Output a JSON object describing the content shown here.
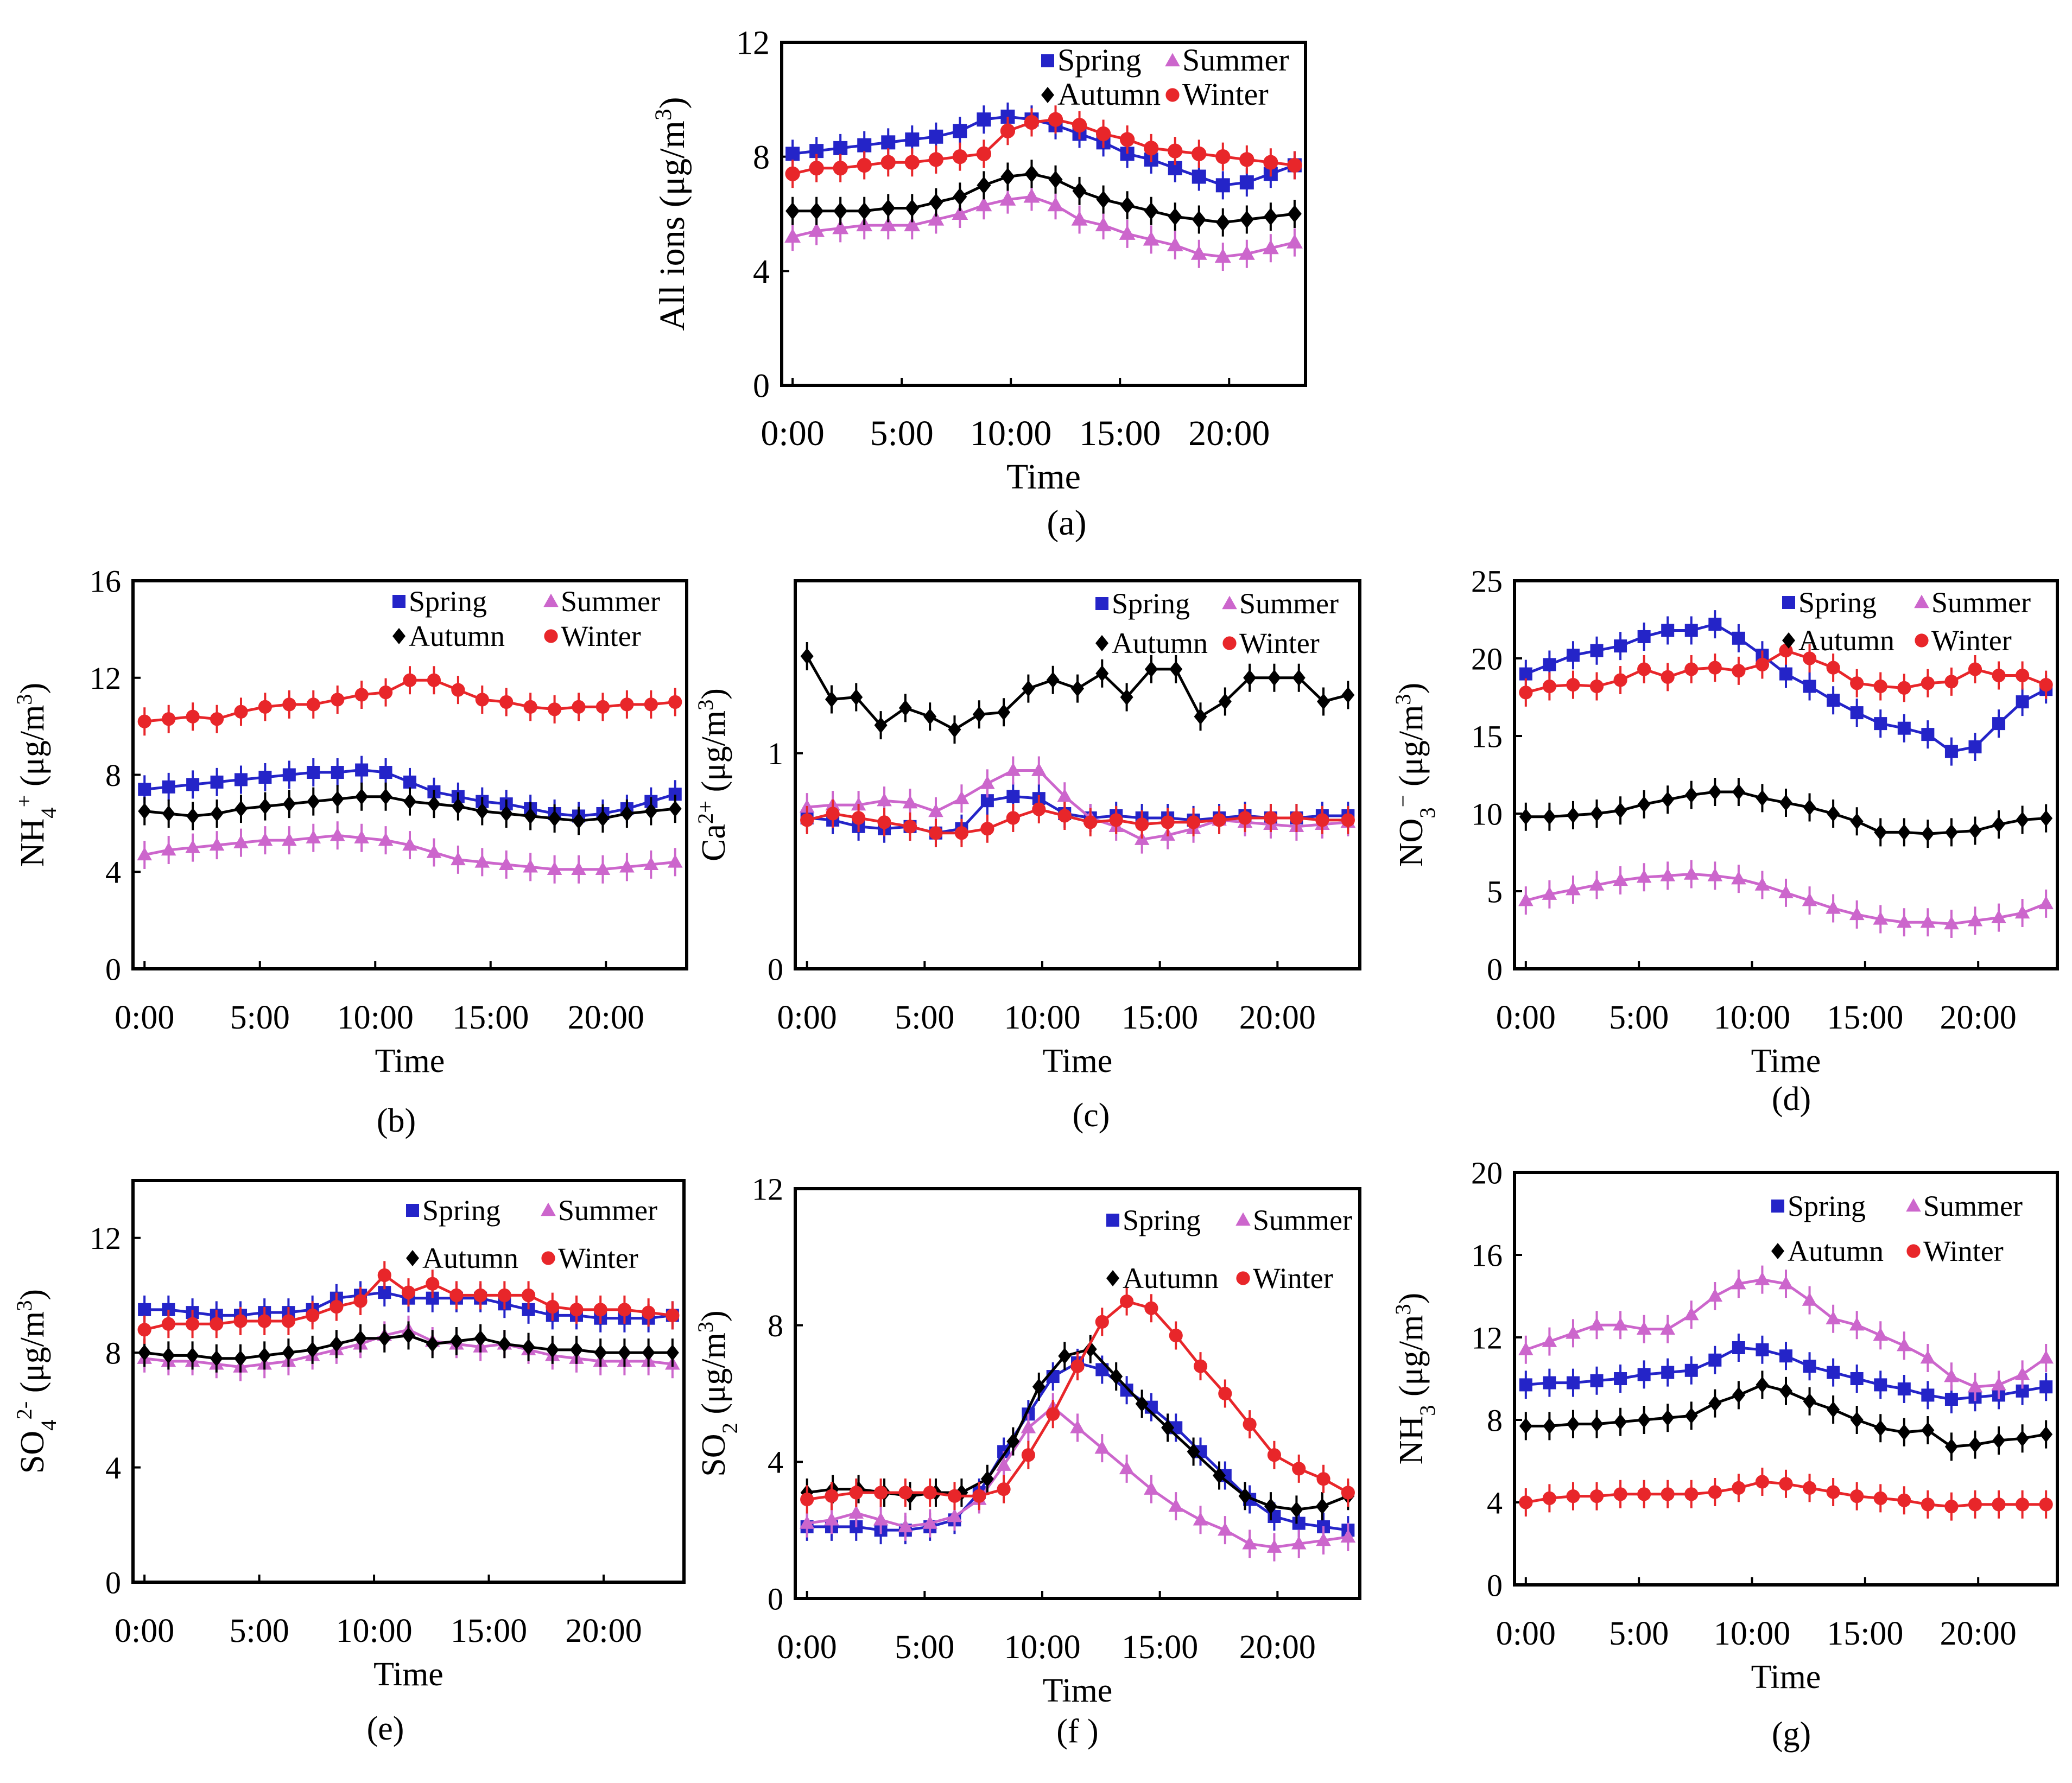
{
  "figure": {
    "x_title": "Time"
  },
  "colors": {
    "spring": "#2424c8",
    "summer": "#cc66cc",
    "autumn": "#000000",
    "winter": "#e8262a",
    "axis": "#000000",
    "background": "#ffffff"
  },
  "chart_data": [
    {
      "id": "a",
      "type": "line",
      "caption": "(a)",
      "ylabel_main": "All ions",
      "ylabel_unit": "(μg/m",
      "ylabel_sup": "3",
      "ylabel_end": ")",
      "ylim": [
        0,
        12
      ],
      "yticks": [
        0,
        4,
        8,
        12
      ],
      "ytick_labels": [
        "0",
        "4",
        "8",
        "12"
      ],
      "xlim": [
        -0.5,
        23.5
      ],
      "xticks": [
        0,
        5,
        10,
        15,
        20
      ],
      "xtick_labels": [
        "0:00",
        "5:00",
        "10:00",
        "15:00",
        "20:00"
      ],
      "x_title": "Time",
      "legend_order": [
        "Spring",
        "Summer",
        "Autumn",
        "Winter"
      ],
      "series": [
        {
          "name": "Spring",
          "values": [
            8.1,
            8.2,
            8.3,
            8.4,
            8.5,
            8.6,
            8.7,
            8.9,
            9.3,
            9.4,
            9.3,
            9.1,
            8.8,
            8.5,
            8.1,
            7.9,
            7.6,
            7.3,
            7.0,
            7.1,
            7.4,
            7.7
          ]
        },
        {
          "name": "Summer",
          "values": [
            5.2,
            5.4,
            5.5,
            5.6,
            5.6,
            5.6,
            5.8,
            6.0,
            6.3,
            6.5,
            6.6,
            6.3,
            5.8,
            5.6,
            5.3,
            5.1,
            4.9,
            4.6,
            4.5,
            4.6,
            4.8,
            5.0
          ]
        },
        {
          "name": "Autumn",
          "values": [
            6.1,
            6.1,
            6.1,
            6.1,
            6.2,
            6.2,
            6.4,
            6.6,
            7.0,
            7.3,
            7.4,
            7.2,
            6.8,
            6.5,
            6.3,
            6.1,
            5.9,
            5.8,
            5.7,
            5.8,
            5.9,
            6.0
          ]
        },
        {
          "name": "Winter",
          "values": [
            7.4,
            7.6,
            7.6,
            7.7,
            7.8,
            7.8,
            7.9,
            8.0,
            8.1,
            8.9,
            9.2,
            9.3,
            9.1,
            8.8,
            8.6,
            8.3,
            8.2,
            8.1,
            8.0,
            7.9,
            7.8,
            7.7
          ]
        }
      ]
    },
    {
      "id": "b",
      "type": "line",
      "caption": "(b)",
      "ylabel_main": "NH",
      "ylabel_sub": "4",
      "ylabel_sup": "+",
      "ylabel_unit": "(μg/m",
      "ylabel_unit_sup": "3",
      "ylabel_end": ")",
      "ylim": [
        0,
        16
      ],
      "yticks": [
        0,
        4,
        8,
        12,
        16
      ],
      "ytick_labels": [
        "0",
        "4",
        "8",
        "12",
        "16"
      ],
      "xlim": [
        -0.5,
        23.5
      ],
      "xticks": [
        0,
        5,
        10,
        15,
        20
      ],
      "xtick_labels": [
        "0:00",
        "5:00",
        "10:00",
        "15:00",
        "20:00"
      ],
      "x_title": "Time",
      "legend_order": [
        "Spring",
        "Summer",
        "Autumn",
        "Winter"
      ],
      "series": [
        {
          "name": "Spring",
          "values": [
            7.4,
            7.5,
            7.6,
            7.7,
            7.8,
            7.9,
            8.0,
            8.1,
            8.1,
            8.2,
            8.1,
            7.7,
            7.3,
            7.1,
            6.9,
            6.8,
            6.6,
            6.4,
            6.3,
            6.4,
            6.6,
            6.9,
            7.2
          ]
        },
        {
          "name": "Summer",
          "values": [
            4.7,
            4.9,
            5.0,
            5.1,
            5.2,
            5.3,
            5.3,
            5.4,
            5.5,
            5.4,
            5.3,
            5.1,
            4.8,
            4.5,
            4.4,
            4.3,
            4.2,
            4.1,
            4.1,
            4.1,
            4.2,
            4.3,
            4.4
          ]
        },
        {
          "name": "Autumn",
          "values": [
            6.5,
            6.4,
            6.3,
            6.4,
            6.6,
            6.7,
            6.8,
            6.9,
            7.0,
            7.1,
            7.1,
            6.9,
            6.8,
            6.7,
            6.5,
            6.4,
            6.3,
            6.2,
            6.1,
            6.2,
            6.4,
            6.5,
            6.6
          ]
        },
        {
          "name": "Winter",
          "values": [
            10.2,
            10.3,
            10.4,
            10.3,
            10.6,
            10.8,
            10.9,
            10.9,
            11.1,
            11.3,
            11.4,
            11.9,
            11.9,
            11.5,
            11.1,
            11.0,
            10.8,
            10.7,
            10.8,
            10.8,
            10.9,
            10.9,
            11.0
          ]
        }
      ]
    },
    {
      "id": "c",
      "type": "line",
      "caption": "(c)",
      "ylabel_main": "Ca",
      "ylabel_sup": "2+",
      "ylabel_unit": "(μg/m",
      "ylabel_unit_sup": "3",
      "ylabel_end": ")",
      "ylim": [
        0,
        1.8
      ],
      "yticks": [
        0,
        1
      ],
      "ytick_labels": [
        "0",
        "1"
      ],
      "xlim": [
        -0.5,
        23.5
      ],
      "xticks": [
        0,
        5,
        10,
        15,
        20
      ],
      "xtick_labels": [
        "0:00",
        "5:00",
        "10:00",
        "15:00",
        "20:00"
      ],
      "x_title": "Time",
      "legend_order": [
        "Spring",
        "Summer",
        "Autumn",
        "Winter"
      ],
      "series": [
        {
          "name": "Spring",
          "values": [
            0.7,
            0.69,
            0.66,
            0.65,
            0.66,
            0.63,
            0.65,
            0.78,
            0.8,
            0.79,
            0.72,
            0.7,
            0.71,
            0.7,
            0.7,
            0.69,
            0.7,
            0.71,
            0.7,
            0.7,
            0.71,
            0.71
          ]
        },
        {
          "name": "Summer",
          "values": [
            0.75,
            0.76,
            0.76,
            0.78,
            0.77,
            0.73,
            0.79,
            0.86,
            0.92,
            0.92,
            0.8,
            0.7,
            0.66,
            0.6,
            0.62,
            0.65,
            0.69,
            0.68,
            0.67,
            0.66,
            0.67,
            0.68
          ]
        },
        {
          "name": "Autumn",
          "values": [
            1.45,
            1.25,
            1.26,
            1.13,
            1.21,
            1.17,
            1.11,
            1.18,
            1.19,
            1.3,
            1.34,
            1.3,
            1.37,
            1.26,
            1.39,
            1.39,
            1.17,
            1.24,
            1.35,
            1.35,
            1.35,
            1.24,
            1.27
          ]
        },
        {
          "name": "Winter",
          "values": [
            0.69,
            0.72,
            0.7,
            0.68,
            0.66,
            0.63,
            0.63,
            0.65,
            0.7,
            0.74,
            0.71,
            0.68,
            0.69,
            0.67,
            0.68,
            0.68,
            0.69,
            0.7,
            0.7,
            0.7,
            0.69,
            0.69
          ]
        }
      ]
    },
    {
      "id": "d",
      "type": "line",
      "caption": "(d)",
      "ylabel_main": "NO",
      "ylabel_sub": "3",
      "ylabel_sup": "−",
      "ylabel_unit": "(μg/m",
      "ylabel_unit_sup": "3",
      "ylabel_end": ")",
      "ylim": [
        0,
        25
      ],
      "yticks": [
        0,
        5,
        10,
        15,
        20,
        25
      ],
      "ytick_labels": [
        "0",
        "5",
        "10",
        "15",
        "20",
        "25"
      ],
      "xlim": [
        -0.5,
        23.5
      ],
      "xticks": [
        0,
        5,
        10,
        15,
        20
      ],
      "xtick_labels": [
        "0:00",
        "5:00",
        "10:00",
        "15:00",
        "20:00"
      ],
      "x_title": "Time",
      "legend_order": [
        "Spring",
        "Summer",
        "Autumn",
        "Winter"
      ],
      "series": [
        {
          "name": "Spring",
          "values": [
            19.0,
            19.6,
            20.2,
            20.5,
            20.8,
            21.4,
            21.8,
            21.8,
            22.2,
            21.3,
            20.2,
            19.0,
            18.2,
            17.3,
            16.5,
            15.8,
            15.5,
            15.1,
            14.0,
            14.3,
            15.8,
            17.2,
            18.0
          ]
        },
        {
          "name": "Summer",
          "values": [
            4.4,
            4.8,
            5.1,
            5.4,
            5.7,
            5.9,
            6.0,
            6.1,
            6.0,
            5.8,
            5.4,
            4.9,
            4.4,
            3.9,
            3.5,
            3.2,
            3.0,
            3.0,
            2.9,
            3.1,
            3.3,
            3.6,
            4.2
          ]
        },
        {
          "name": "Autumn",
          "values": [
            9.8,
            9.8,
            9.9,
            10.0,
            10.2,
            10.6,
            10.9,
            11.2,
            11.4,
            11.4,
            11.0,
            10.7,
            10.4,
            10.0,
            9.5,
            8.8,
            8.8,
            8.7,
            8.8,
            8.9,
            9.3,
            9.6,
            9.7
          ]
        },
        {
          "name": "Winter",
          "values": [
            17.8,
            18.2,
            18.3,
            18.2,
            18.6,
            19.3,
            18.8,
            19.3,
            19.4,
            19.2,
            19.6,
            20.5,
            20.0,
            19.4,
            18.4,
            18.2,
            18.1,
            18.4,
            18.5,
            19.3,
            18.9,
            18.9,
            18.3
          ]
        }
      ]
    },
    {
      "id": "e",
      "type": "line",
      "caption": "(e)",
      "ylabel_main": "SO",
      "ylabel_sub": "4",
      "ylabel_sup": "2-",
      "ylabel_unit": "(μg/m",
      "ylabel_unit_sup": "3",
      "ylabel_end": ")",
      "ylim": [
        0,
        14
      ],
      "yticks": [
        0,
        4,
        8,
        12
      ],
      "ytick_labels": [
        "0",
        "4",
        "8",
        "12"
      ],
      "xlim": [
        -0.5,
        23.5
      ],
      "xticks": [
        0,
        5,
        10,
        15,
        20
      ],
      "xtick_labels": [
        "0:00",
        "5:00",
        "10:00",
        "15:00",
        "20:00"
      ],
      "x_title": "Time",
      "legend_order": [
        "Spring",
        "Summer",
        "Autumn",
        "Winter"
      ],
      "series": [
        {
          "name": "Spring",
          "values": [
            9.5,
            9.5,
            9.4,
            9.3,
            9.3,
            9.4,
            9.4,
            9.5,
            9.9,
            10.0,
            10.1,
            9.9,
            9.9,
            9.9,
            9.9,
            9.7,
            9.5,
            9.3,
            9.3,
            9.2,
            9.2,
            9.2,
            9.3
          ]
        },
        {
          "name": "Summer",
          "values": [
            7.8,
            7.7,
            7.7,
            7.6,
            7.5,
            7.6,
            7.7,
            7.9,
            8.1,
            8.3,
            8.6,
            8.8,
            8.4,
            8.3,
            8.2,
            8.3,
            8.1,
            7.9,
            7.8,
            7.7,
            7.7,
            7.7,
            7.6
          ]
        },
        {
          "name": "Autumn",
          "values": [
            8.0,
            7.9,
            7.9,
            7.8,
            7.8,
            7.9,
            8.0,
            8.1,
            8.3,
            8.5,
            8.5,
            8.6,
            8.3,
            8.4,
            8.5,
            8.3,
            8.2,
            8.1,
            8.1,
            8.0,
            8.0,
            8.0,
            8.0
          ]
        },
        {
          "name": "Winter",
          "values": [
            8.8,
            9.0,
            9.0,
            9.0,
            9.1,
            9.1,
            9.1,
            9.3,
            9.6,
            9.8,
            10.7,
            10.1,
            10.4,
            10.0,
            10.0,
            10.0,
            10.0,
            9.6,
            9.5,
            9.5,
            9.5,
            9.4,
            9.3
          ]
        }
      ]
    },
    {
      "id": "f",
      "type": "line",
      "caption": "(f )",
      "ylabel_main": "SO",
      "ylabel_sub": "2",
      "ylabel_unit": "(μg/m",
      "ylabel_unit_sup": "3",
      "ylabel_end": ")",
      "ylim": [
        0,
        12
      ],
      "yticks": [
        0,
        4,
        8,
        12
      ],
      "ytick_labels": [
        "0",
        "4",
        "8",
        "12"
      ],
      "xlim": [
        -0.5,
        23.5
      ],
      "xticks": [
        0,
        5,
        10,
        15,
        20
      ],
      "xtick_labels": [
        "0:00",
        "5:00",
        "10:00",
        "15:00",
        "20:00"
      ],
      "x_title": "Time",
      "legend_order": [
        "Spring",
        "Summer",
        "Autumn",
        "Winter"
      ],
      "series": [
        {
          "name": "Spring",
          "values": [
            2.1,
            2.1,
            2.1,
            2.0,
            2.0,
            2.1,
            2.3,
            3.1,
            4.3,
            5.4,
            6.5,
            6.9,
            6.7,
            6.1,
            5.6,
            5.0,
            4.3,
            3.6,
            2.9,
            2.4,
            2.2,
            2.1,
            2.0
          ]
        },
        {
          "name": "Summer",
          "values": [
            2.2,
            2.3,
            2.5,
            2.3,
            2.1,
            2.2,
            2.4,
            2.9,
            3.9,
            5.0,
            5.6,
            5.0,
            4.4,
            3.8,
            3.2,
            2.7,
            2.3,
            2.0,
            1.6,
            1.5,
            1.6,
            1.7,
            1.8
          ]
        },
        {
          "name": "Autumn",
          "values": [
            3.1,
            3.2,
            3.2,
            3.1,
            3.0,
            3.1,
            3.1,
            3.5,
            4.6,
            6.2,
            7.1,
            7.3,
            6.5,
            5.7,
            5.0,
            4.3,
            3.6,
            3.0,
            2.7,
            2.6,
            2.7,
            3.0
          ]
        },
        {
          "name": "Winter",
          "values": [
            2.9,
            3.0,
            3.1,
            3.1,
            3.1,
            3.1,
            3.0,
            3.0,
            3.2,
            4.2,
            5.4,
            6.8,
            8.1,
            8.7,
            8.5,
            7.7,
            6.8,
            6.0,
            5.1,
            4.2,
            3.8,
            3.5,
            3.1
          ]
        }
      ]
    },
    {
      "id": "g",
      "type": "line",
      "caption": "(g)",
      "ylabel_main": "NH",
      "ylabel_sub": "3",
      "ylabel_unit": "(μg/m",
      "ylabel_unit_sup": "3",
      "ylabel_end": ")",
      "ylim": [
        0,
        20
      ],
      "yticks": [
        0,
        4,
        8,
        12,
        16,
        20
      ],
      "ytick_labels": [
        "0",
        "4",
        "8",
        "12",
        "16",
        "20"
      ],
      "xlim": [
        -0.5,
        23.5
      ],
      "xticks": [
        0,
        5,
        10,
        15,
        20
      ],
      "xtick_labels": [
        "0:00",
        "5:00",
        "10:00",
        "15:00",
        "20:00"
      ],
      "x_title": "Time",
      "legend_order": [
        "Spring",
        "Summer",
        "Autumn",
        "Winter"
      ],
      "series": [
        {
          "name": "Spring",
          "values": [
            9.7,
            9.8,
            9.8,
            9.9,
            10.0,
            10.2,
            10.3,
            10.4,
            10.9,
            11.5,
            11.4,
            11.1,
            10.6,
            10.3,
            10.0,
            9.7,
            9.5,
            9.2,
            9.0,
            9.1,
            9.2,
            9.4,
            9.6
          ]
        },
        {
          "name": "Summer",
          "values": [
            11.4,
            11.8,
            12.2,
            12.6,
            12.6,
            12.4,
            12.4,
            13.1,
            14.0,
            14.6,
            14.8,
            14.6,
            13.8,
            12.9,
            12.6,
            12.1,
            11.6,
            11.0,
            10.1,
            9.6,
            9.7,
            10.2,
            11.0
          ]
        },
        {
          "name": "Autumn",
          "values": [
            7.7,
            7.7,
            7.8,
            7.8,
            7.9,
            8.0,
            8.1,
            8.2,
            8.8,
            9.2,
            9.7,
            9.4,
            8.9,
            8.5,
            8.0,
            7.6,
            7.4,
            7.5,
            6.7,
            6.8,
            7.0,
            7.1,
            7.3
          ]
        },
        {
          "name": "Winter",
          "values": [
            4.0,
            4.2,
            4.3,
            4.3,
            4.4,
            4.4,
            4.4,
            4.4,
            4.5,
            4.7,
            5.0,
            4.9,
            4.7,
            4.5,
            4.3,
            4.2,
            4.1,
            3.9,
            3.8,
            3.9,
            3.9,
            3.9,
            3.9
          ]
        }
      ]
    }
  ]
}
